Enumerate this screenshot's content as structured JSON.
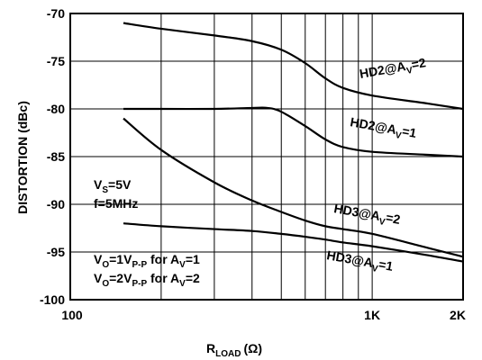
{
  "chart_data": {
    "type": "line",
    "title": "",
    "xlabel": {
      "main": "R",
      "sub": "LOAD",
      "unit": "(Ω)"
    },
    "ylabel": "DISTORTION (dBc)",
    "x_scale": "log",
    "xlim": [
      100,
      2000
    ],
    "ylim": [
      -100,
      -70
    ],
    "grid": true,
    "x_tick_labels": [
      {
        "value": 100,
        "label": "100"
      },
      {
        "value": 1000,
        "label": "1K"
      },
      {
        "value": 2000,
        "label": "2K"
      }
    ],
    "y_tick_labels": [
      {
        "value": -70,
        "label": "-70"
      },
      {
        "value": -75,
        "label": "-75"
      },
      {
        "value": -80,
        "label": "-80"
      },
      {
        "value": -85,
        "label": "-85"
      },
      {
        "value": -90,
        "label": "-90"
      },
      {
        "value": -95,
        "label": "-95"
      },
      {
        "value": -100,
        "label": "-100"
      }
    ],
    "series": [
      {
        "label": {
          "a": "HD2@A",
          "b": "V",
          "c": "=2"
        },
        "points": [
          [
            150,
            -71.0
          ],
          [
            200,
            -71.6
          ],
          [
            300,
            -72.3
          ],
          [
            400,
            -72.9
          ],
          [
            500,
            -73.8
          ],
          [
            600,
            -75.2
          ],
          [
            700,
            -76.8
          ],
          [
            800,
            -77.8
          ],
          [
            1000,
            -78.6
          ],
          [
            1500,
            -79.4
          ],
          [
            2000,
            -80.0
          ]
        ]
      },
      {
        "label": {
          "a": "HD2@A",
          "b": "V",
          "c": "=1"
        },
        "points": [
          [
            150,
            -80.0
          ],
          [
            200,
            -80.0
          ],
          [
            300,
            -80.0
          ],
          [
            400,
            -79.9
          ],
          [
            450,
            -79.9
          ],
          [
            500,
            -80.3
          ],
          [
            600,
            -81.8
          ],
          [
            700,
            -83.2
          ],
          [
            800,
            -84.0
          ],
          [
            1000,
            -84.5
          ],
          [
            1500,
            -84.8
          ],
          [
            2000,
            -85.0
          ]
        ]
      },
      {
        "label": {
          "a": "HD3@A",
          "b": "V",
          "c": "=2"
        },
        "points": [
          [
            150,
            -81.0
          ],
          [
            200,
            -84.3
          ],
          [
            300,
            -87.7
          ],
          [
            400,
            -89.6
          ],
          [
            500,
            -90.8
          ],
          [
            600,
            -91.7
          ],
          [
            700,
            -92.3
          ],
          [
            800,
            -92.6
          ],
          [
            1000,
            -93.1
          ],
          [
            1500,
            -94.5
          ],
          [
            2000,
            -95.5
          ]
        ]
      },
      {
        "label": {
          "a": "HD3@A",
          "b": "V",
          "c": "=1"
        },
        "points": [
          [
            150,
            -92.0
          ],
          [
            200,
            -92.3
          ],
          [
            300,
            -92.6
          ],
          [
            400,
            -92.8
          ],
          [
            500,
            -93.1
          ],
          [
            600,
            -93.4
          ],
          [
            700,
            -93.7
          ],
          [
            800,
            -94.0
          ],
          [
            1000,
            -94.4
          ],
          [
            1500,
            -95.3
          ],
          [
            2000,
            -96.0
          ]
        ]
      }
    ],
    "annotations": {
      "vs": {
        "a": "V",
        "b": "S",
        "c": "=5V"
      },
      "freq": "f=5MHz",
      "vo1": {
        "a": "V",
        "b": "O",
        "c": "=1V",
        "d": "P-P",
        "e": " for A",
        "f": "V",
        "g": "=1"
      },
      "vo2": {
        "a": "V",
        "b": "O",
        "c": "=2V",
        "d": "P-P",
        "e": " for A",
        "f": "V",
        "g": "=2"
      }
    }
  }
}
